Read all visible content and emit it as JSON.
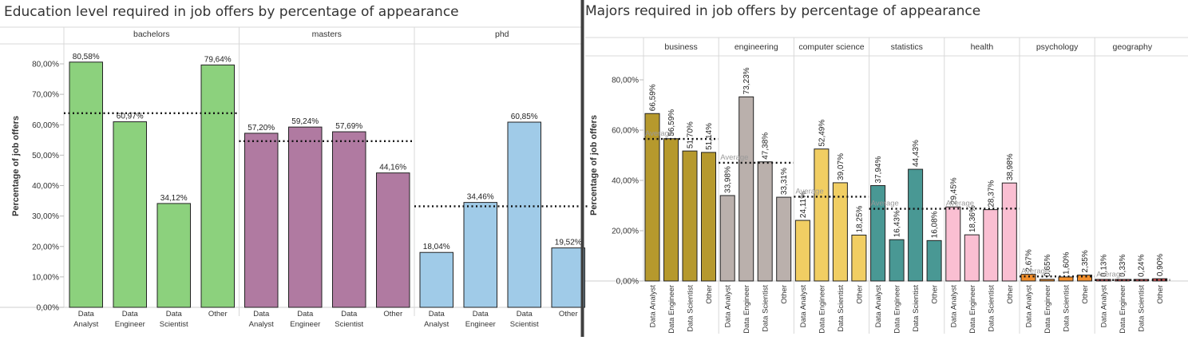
{
  "chart_data": [
    {
      "type": "bar",
      "title": "Education level required in  job offers by percentage of appearance",
      "ylabel": "Percentage of job offers",
      "ylim": [
        0,
        85
      ],
      "yticks": [
        "0,00%",
        "10,00%",
        "20,00%",
        "30,00%",
        "40,00%",
        "50,00%",
        "60,00%",
        "70,00%",
        "80,00%"
      ],
      "categories": [
        "Data Analyst",
        "Data Engineer",
        "Data Scientist",
        "Other"
      ],
      "grid": false,
      "reference_line": "average (dotted)",
      "groups": [
        {
          "name": "bachelors",
          "color": "#8cd17d",
          "values": [
            80.58,
            60.97,
            34.12,
            79.64
          ],
          "labels": [
            "80,58%",
            "60,97%",
            "34,12%",
            "79,64%"
          ],
          "average": 63.8
        },
        {
          "name": "masters",
          "color": "#b07aa1",
          "values": [
            57.2,
            59.24,
            57.69,
            44.16
          ],
          "labels": [
            "57,20%",
            "59,24%",
            "57,69%",
            "44,16%"
          ],
          "average": 54.6
        },
        {
          "name": "phd",
          "color": "#a0cbe8",
          "values": [
            18.04,
            34.46,
            60.85,
            19.52
          ],
          "labels": [
            "18,04%",
            "34,46%",
            "60,85%",
            "19,52%"
          ],
          "average": 33.2
        }
      ]
    },
    {
      "type": "bar",
      "title": "Majors required in  job offers by percentage of appearance",
      "ylabel": "Percentage of job offers",
      "ylim": [
        0,
        88
      ],
      "yticks": [
        "0,00%",
        "20,00%",
        "40,00%",
        "60,00%",
        "80,00%"
      ],
      "categories": [
        "Data Analyst",
        "Data Engineer",
        "Data Scientist",
        "Other"
      ],
      "grid": false,
      "average_label": "Average",
      "groups": [
        {
          "name": "business",
          "color": "#b6992d",
          "values": [
            66.59,
            56.59,
            51.7,
            51.14
          ],
          "labels": [
            "66,59%",
            "56,59%",
            "51,70%",
            "51,14%"
          ],
          "average": 56.5
        },
        {
          "name": "engineering",
          "color": "#bab0ac",
          "values": [
            33.98,
            73.23,
            47.38,
            33.31
          ],
          "labels": [
            "33,98%",
            "73,23%",
            "47,38%",
            "33,31%"
          ],
          "average": 47.0
        },
        {
          "name": "computer science",
          "color": "#f1ce63",
          "values": [
            24.11,
            52.49,
            39.07,
            18.25
          ],
          "labels": [
            "24,11%",
            "52,49%",
            "39,07%",
            "18,25%"
          ],
          "average": 33.5
        },
        {
          "name": "statistics",
          "color": "#499894",
          "values": [
            37.94,
            16.43,
            44.43,
            16.08
          ],
          "labels": [
            "37,94%",
            "16,43%",
            "44,43%",
            "16,08%"
          ],
          "average": 28.7
        },
        {
          "name": "health",
          "color": "#fabfd2",
          "values": [
            29.45,
            18.36,
            28.37,
            38.98
          ],
          "labels": [
            "29,45%",
            "18,36%",
            "28,37%",
            "38,98%"
          ],
          "average": 28.8
        },
        {
          "name": "psychology",
          "color": "#f28e2b",
          "values": [
            2.67,
            0.65,
            1.6,
            2.35
          ],
          "labels": [
            "2,67%",
            "0,65%",
            "1,60%",
            "2,35%"
          ],
          "average": 1.8
        },
        {
          "name": "geography",
          "color": "#e15759",
          "values": [
            0.13,
            0.33,
            0.24,
            0.9
          ],
          "labels": [
            "0,13%",
            "0,33%",
            "0,24%",
            "0,90%"
          ],
          "average": 0.4
        }
      ]
    }
  ]
}
